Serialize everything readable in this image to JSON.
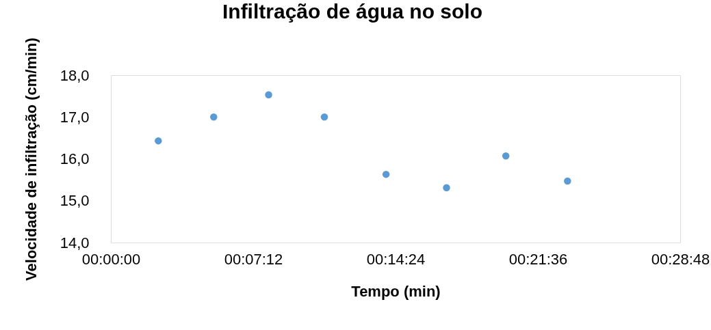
{
  "chart_data": {
    "type": "scatter",
    "title": "Infiltração de água no solo",
    "xlabel": "Tempo  (min)",
    "ylabel": "Velocidade de infiltração (cm/min)",
    "x": [
      0.04,
      0.0867,
      0.133,
      0.18,
      0.232,
      0.283,
      0.333,
      0.385
    ],
    "series": [
      {
        "color": "#5b9bd5",
        "values": [
          16.43,
          17.0,
          17.53,
          17.0,
          15.63,
          15.31,
          16.07,
          15.47
        ]
      }
    ],
    "xlim": [
      0,
      0.48
    ],
    "xticks": [
      {
        "value": 0,
        "label": "00:00:00"
      },
      {
        "value": 0.12,
        "label": "00:07:12"
      },
      {
        "value": 0.24,
        "label": "00:14:24"
      },
      {
        "value": 0.36,
        "label": "00:21:36"
      },
      {
        "value": 0.48,
        "label": "00:28:48"
      }
    ],
    "ylim": [
      14,
      18
    ],
    "yticks": [
      {
        "value": 14,
        "label": "14,0"
      },
      {
        "value": 15,
        "label": "15,0"
      },
      {
        "value": 16,
        "label": "16,0"
      },
      {
        "value": 17,
        "label": "17,0"
      },
      {
        "value": 18,
        "label": "18,0"
      }
    ],
    "grid": false,
    "legend": false,
    "marker": "circle"
  }
}
